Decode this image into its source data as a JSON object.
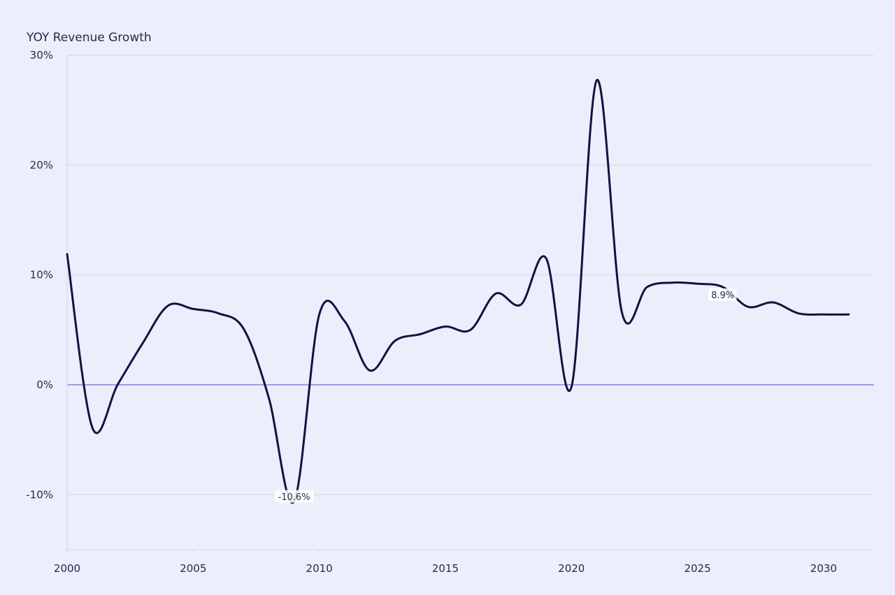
{
  "chart_data": {
    "type": "line",
    "ylabel": "YOY Revenue Growth",
    "xlabel": "",
    "x_ticks": [
      2000,
      2005,
      2010,
      2015,
      2020,
      2025,
      2030
    ],
    "y_ticks": [
      -10,
      0,
      10,
      20,
      30
    ],
    "y_tick_labels": [
      "-10%",
      "0%",
      "10%",
      "20%",
      "30%"
    ],
    "x_tick_labels": [
      "2000",
      "2005",
      "2010",
      "2015",
      "2020",
      "2025",
      "2030"
    ],
    "xlim": [
      2000,
      2032
    ],
    "ylim": [
      -15,
      30
    ],
    "grid": true,
    "x": [
      2000,
      2001,
      2002,
      2003,
      2004,
      2005,
      2006,
      2007,
      2008,
      2009,
      2010,
      2011,
      2012,
      2013,
      2014,
      2015,
      2016,
      2017,
      2018,
      2019,
      2020,
      2021,
      2022,
      2023,
      2024,
      2025,
      2026,
      2027,
      2028,
      2029,
      2030,
      2031
    ],
    "series": [
      {
        "values": [
          11.9,
          -3.9,
          0.0,
          3.8,
          7.2,
          6.9,
          6.5,
          5.1,
          -1.2,
          -10.6,
          6.4,
          5.8,
          1.3,
          4.0,
          4.6,
          5.3,
          5.0,
          8.3,
          7.3,
          11.5,
          -0.2,
          27.7,
          6.6,
          8.9,
          9.3,
          9.2,
          8.9,
          7.1,
          7.5,
          6.5,
          6.4,
          6.4
        ],
        "color": "#0f1340"
      }
    ],
    "annotations": [
      {
        "x": 2009,
        "y": -10.6,
        "text": "-10.6%"
      },
      {
        "x": 2026,
        "y": 8.9,
        "text": "8.9%"
      }
    ],
    "zero_line_color": "#7b86ec",
    "grid_color": "#d9d9e2"
  }
}
